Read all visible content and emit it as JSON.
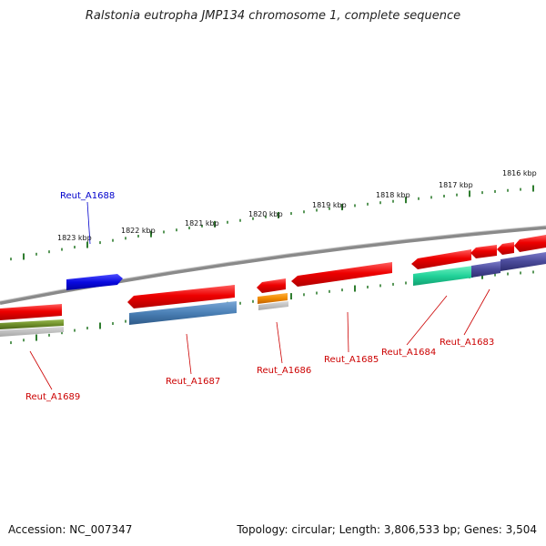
{
  "title": "Ralstonia eutropha JMP134 chromosome 1, complete sequence",
  "footer": {
    "accession": "Accession: NC_007347",
    "summary": "Topology: circular; Length: 3,806,533 bp; Genes: 3,504"
  },
  "ticks": [
    {
      "label": "1816 kbp"
    },
    {
      "label": "1817 kbp"
    },
    {
      "label": "1818 kbp"
    },
    {
      "label": "1819 kbp"
    },
    {
      "label": "1820 kbp"
    },
    {
      "label": "1821 kbp"
    },
    {
      "label": "1822 kbp"
    },
    {
      "label": "1823 kbp"
    }
  ],
  "genes": [
    {
      "name": "Reut_A1688",
      "color": "#0000cc"
    },
    {
      "name": "Reut_A1687",
      "color": "#cc0000"
    },
    {
      "name": "Reut_A1686",
      "color": "#cc0000"
    },
    {
      "name": "Reut_A1685",
      "color": "#cc0000"
    },
    {
      "name": "Reut_A1684",
      "color": "#cc0000"
    },
    {
      "name": "Reut_A1683",
      "color": "#cc0000"
    },
    {
      "name": "Reut_A1689",
      "color": "#cc0000"
    }
  ],
  "colors": {
    "backbone": "#8a8a8a",
    "tick": "#2f7d2f",
    "cds": "#ee0000",
    "cds_reverse": "#1010e0",
    "teal": "#22d39a",
    "steelblue": "#4a7fb5",
    "orange": "#f08a00",
    "olive": "#6f8f2a",
    "slate": "#4a4a9a"
  }
}
